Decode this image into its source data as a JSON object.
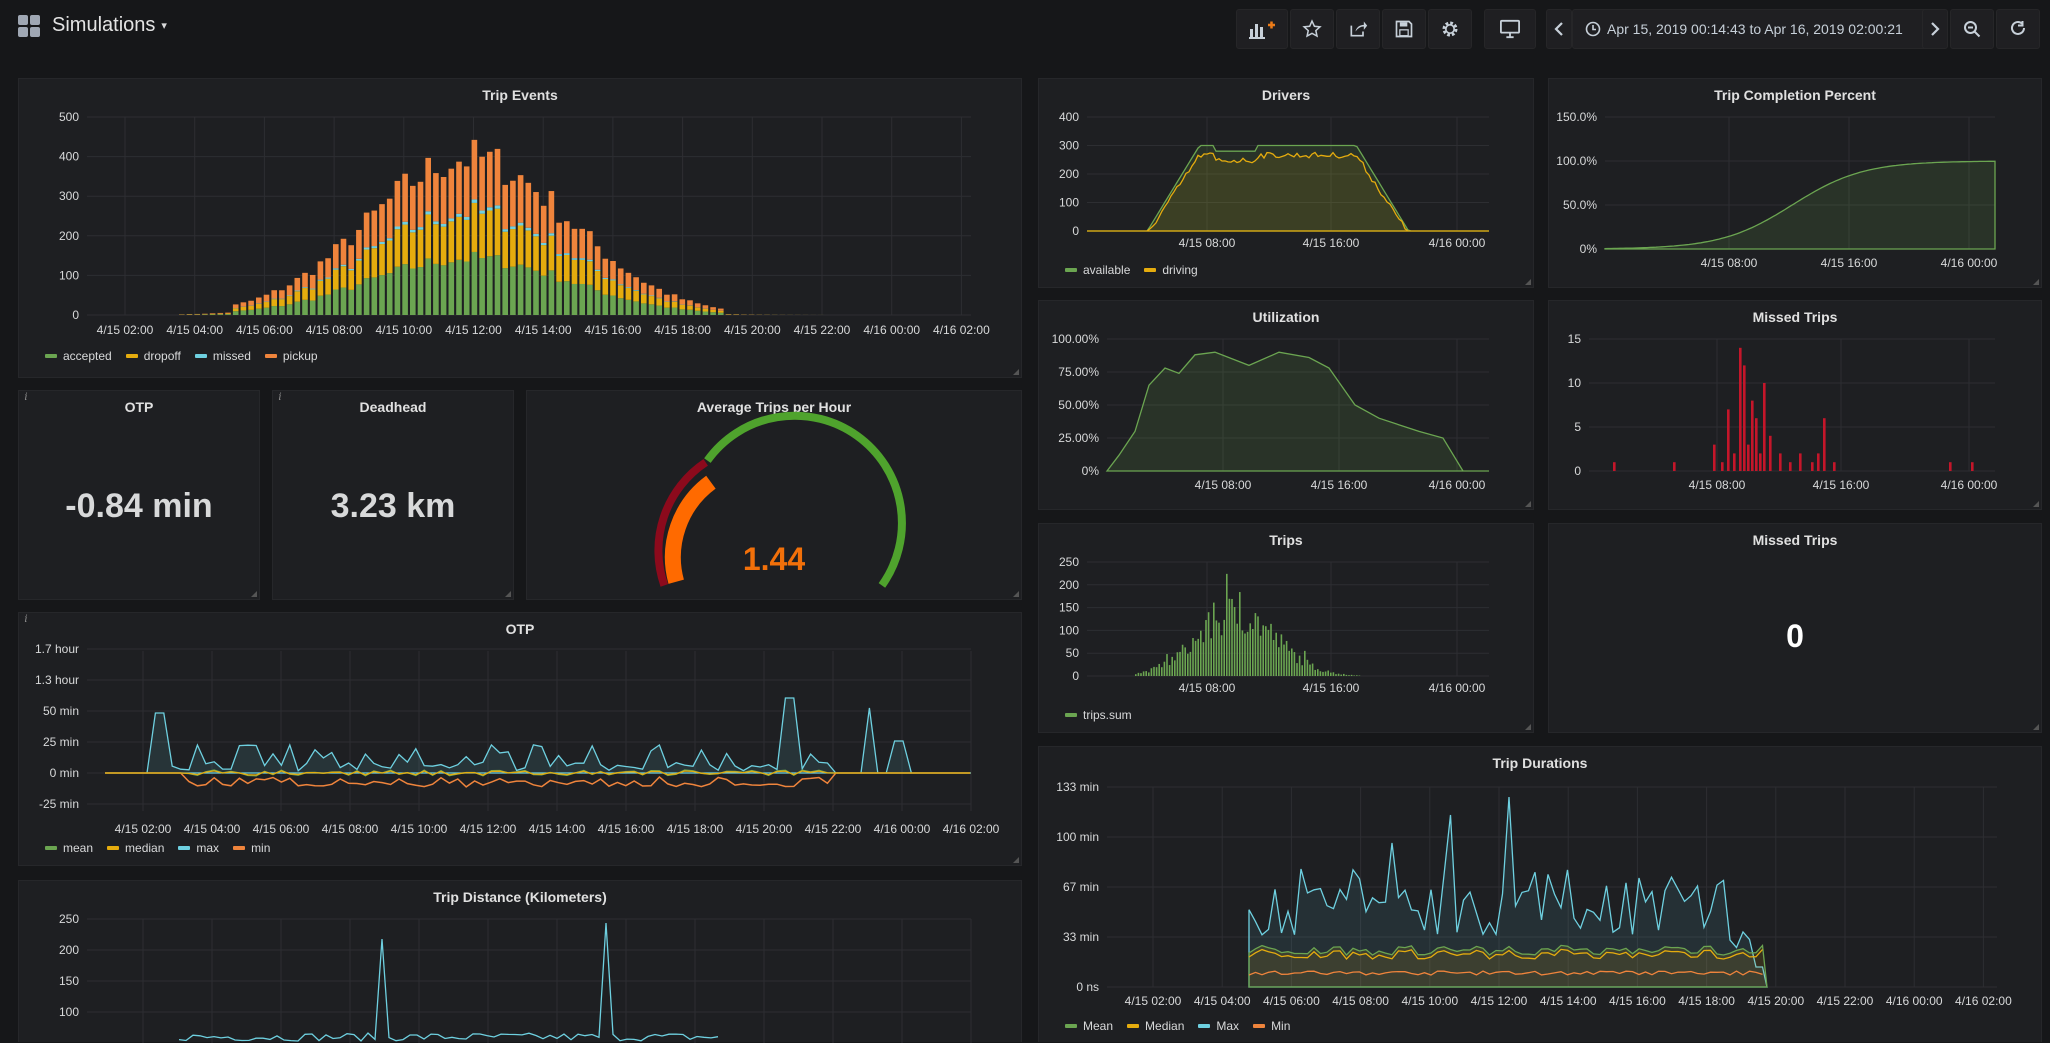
{
  "header": {
    "title": "Simulations",
    "time_range": "Apr 15, 2019 00:14:43 to Apr 16, 2019 02:00:21"
  },
  "colors": {
    "green": "#6ba551",
    "yellow": "#e5ac0e",
    "blue": "#6ed0e0",
    "orange": "#ef843c",
    "red": "#c4162a",
    "white": "#ffffff"
  },
  "panels": {
    "trip_events": {
      "title": "Trip Events"
    },
    "otp_stat": {
      "title": "OTP",
      "value": "-0.84 min"
    },
    "deadhead": {
      "title": "Deadhead",
      "value": "3.23 km"
    },
    "avg_trips": {
      "title": "Average Trips per Hour",
      "value": "1.44"
    },
    "otp_graph": {
      "title": "OTP"
    },
    "trip_distance": {
      "title": "Trip Distance (Kilometers)"
    },
    "drivers": {
      "title": "Drivers"
    },
    "trip_completion": {
      "title": "Trip Completion Percent"
    },
    "utilization": {
      "title": "Utilization"
    },
    "missed_trips_graph": {
      "title": "Missed Trips"
    },
    "trips": {
      "title": "Trips"
    },
    "missed_trips_stat": {
      "title": "Missed Trips",
      "value": "0"
    },
    "trip_durations": {
      "title": "Trip Durations"
    }
  },
  "chart_data": [
    {
      "id": "trip_events",
      "type": "bar",
      "stacked": true,
      "title": "Trip Events",
      "ylim": [
        0,
        500
      ],
      "yticks": [
        "0",
        "100",
        "200",
        "300",
        "400",
        "500"
      ],
      "xticks": [
        "4/15 02:00",
        "4/15 04:00",
        "4/15 06:00",
        "4/15 08:00",
        "4/15 10:00",
        "4/15 12:00",
        "4/15 14:00",
        "4/15 16:00",
        "4/15 18:00",
        "4/15 20:00",
        "4/15 22:00",
        "4/16 00:00",
        "4/16 02:00"
      ],
      "legend": [
        "accepted",
        "dropoff",
        "missed",
        "pickup"
      ]
    },
    {
      "id": "otp_graph",
      "type": "line",
      "title": "OTP",
      "yticks": [
        "1.7 hour",
        "1.3 hour",
        "50 min",
        "25 min",
        "0 min",
        "-25 min"
      ],
      "xticks": [
        "4/15 02:00",
        "4/15 04:00",
        "4/15 06:00",
        "4/15 08:00",
        "4/15 10:00",
        "4/15 12:00",
        "4/15 14:00",
        "4/15 16:00",
        "4/15 18:00",
        "4/15 20:00",
        "4/15 22:00",
        "4/16 00:00",
        "4/16 02:00"
      ],
      "legend": [
        "mean",
        "median",
        "max",
        "min"
      ]
    },
    {
      "id": "trip_distance",
      "type": "line",
      "title": "Trip Distance (Kilometers)",
      "yticks": [
        "250",
        "200",
        "150",
        "100"
      ]
    },
    {
      "id": "drivers",
      "type": "line",
      "title": "Drivers",
      "ylim": [
        0,
        400
      ],
      "yticks": [
        "400",
        "300",
        "200",
        "100",
        "0"
      ],
      "xticks": [
        "4/15 08:00",
        "4/15 16:00",
        "4/16 00:00"
      ],
      "legend": [
        "available",
        "driving"
      ]
    },
    {
      "id": "trip_completion",
      "type": "area",
      "title": "Trip Completion Percent",
      "yticks": [
        "150.0%",
        "100.0%",
        "50.0%",
        "0%"
      ],
      "xticks": [
        "4/15 08:00",
        "4/15 16:00",
        "4/16 00:00"
      ]
    },
    {
      "id": "utilization",
      "type": "area",
      "title": "Utilization",
      "yticks": [
        "100.00%",
        "75.00%",
        "50.00%",
        "25.00%",
        "0%"
      ],
      "xticks": [
        "4/15 08:00",
        "4/15 16:00",
        "4/16 00:00"
      ]
    },
    {
      "id": "missed_trips",
      "type": "bar",
      "title": "Missed Trips",
      "ylim": [
        0,
        15
      ],
      "yticks": [
        "15",
        "10",
        "5",
        "0"
      ],
      "xticks": [
        "4/15 08:00",
        "4/15 16:00",
        "4/16 00:00"
      ]
    },
    {
      "id": "trips",
      "type": "bar",
      "title": "Trips",
      "ylim": [
        0,
        250
      ],
      "yticks": [
        "250",
        "200",
        "150",
        "100",
        "50",
        "0"
      ],
      "xticks": [
        "4/15 08:00",
        "4/15 16:00",
        "4/16 00:00"
      ],
      "legend": [
        "trips.sum"
      ]
    },
    {
      "id": "trip_durations",
      "type": "line",
      "title": "Trip Durations",
      "yticks": [
        "133 min",
        "100 min",
        "67 min",
        "33 min",
        "0 ns"
      ],
      "xticks": [
        "4/15 02:00",
        "4/15 04:00",
        "4/15 06:00",
        "4/15 08:00",
        "4/15 10:00",
        "4/15 12:00",
        "4/15 14:00",
        "4/15 16:00",
        "4/15 18:00",
        "4/15 20:00",
        "4/15 22:00",
        "4/16 00:00",
        "4/16 02:00"
      ],
      "legend": [
        "Mean",
        "Median",
        "Max",
        "Min"
      ]
    }
  ]
}
